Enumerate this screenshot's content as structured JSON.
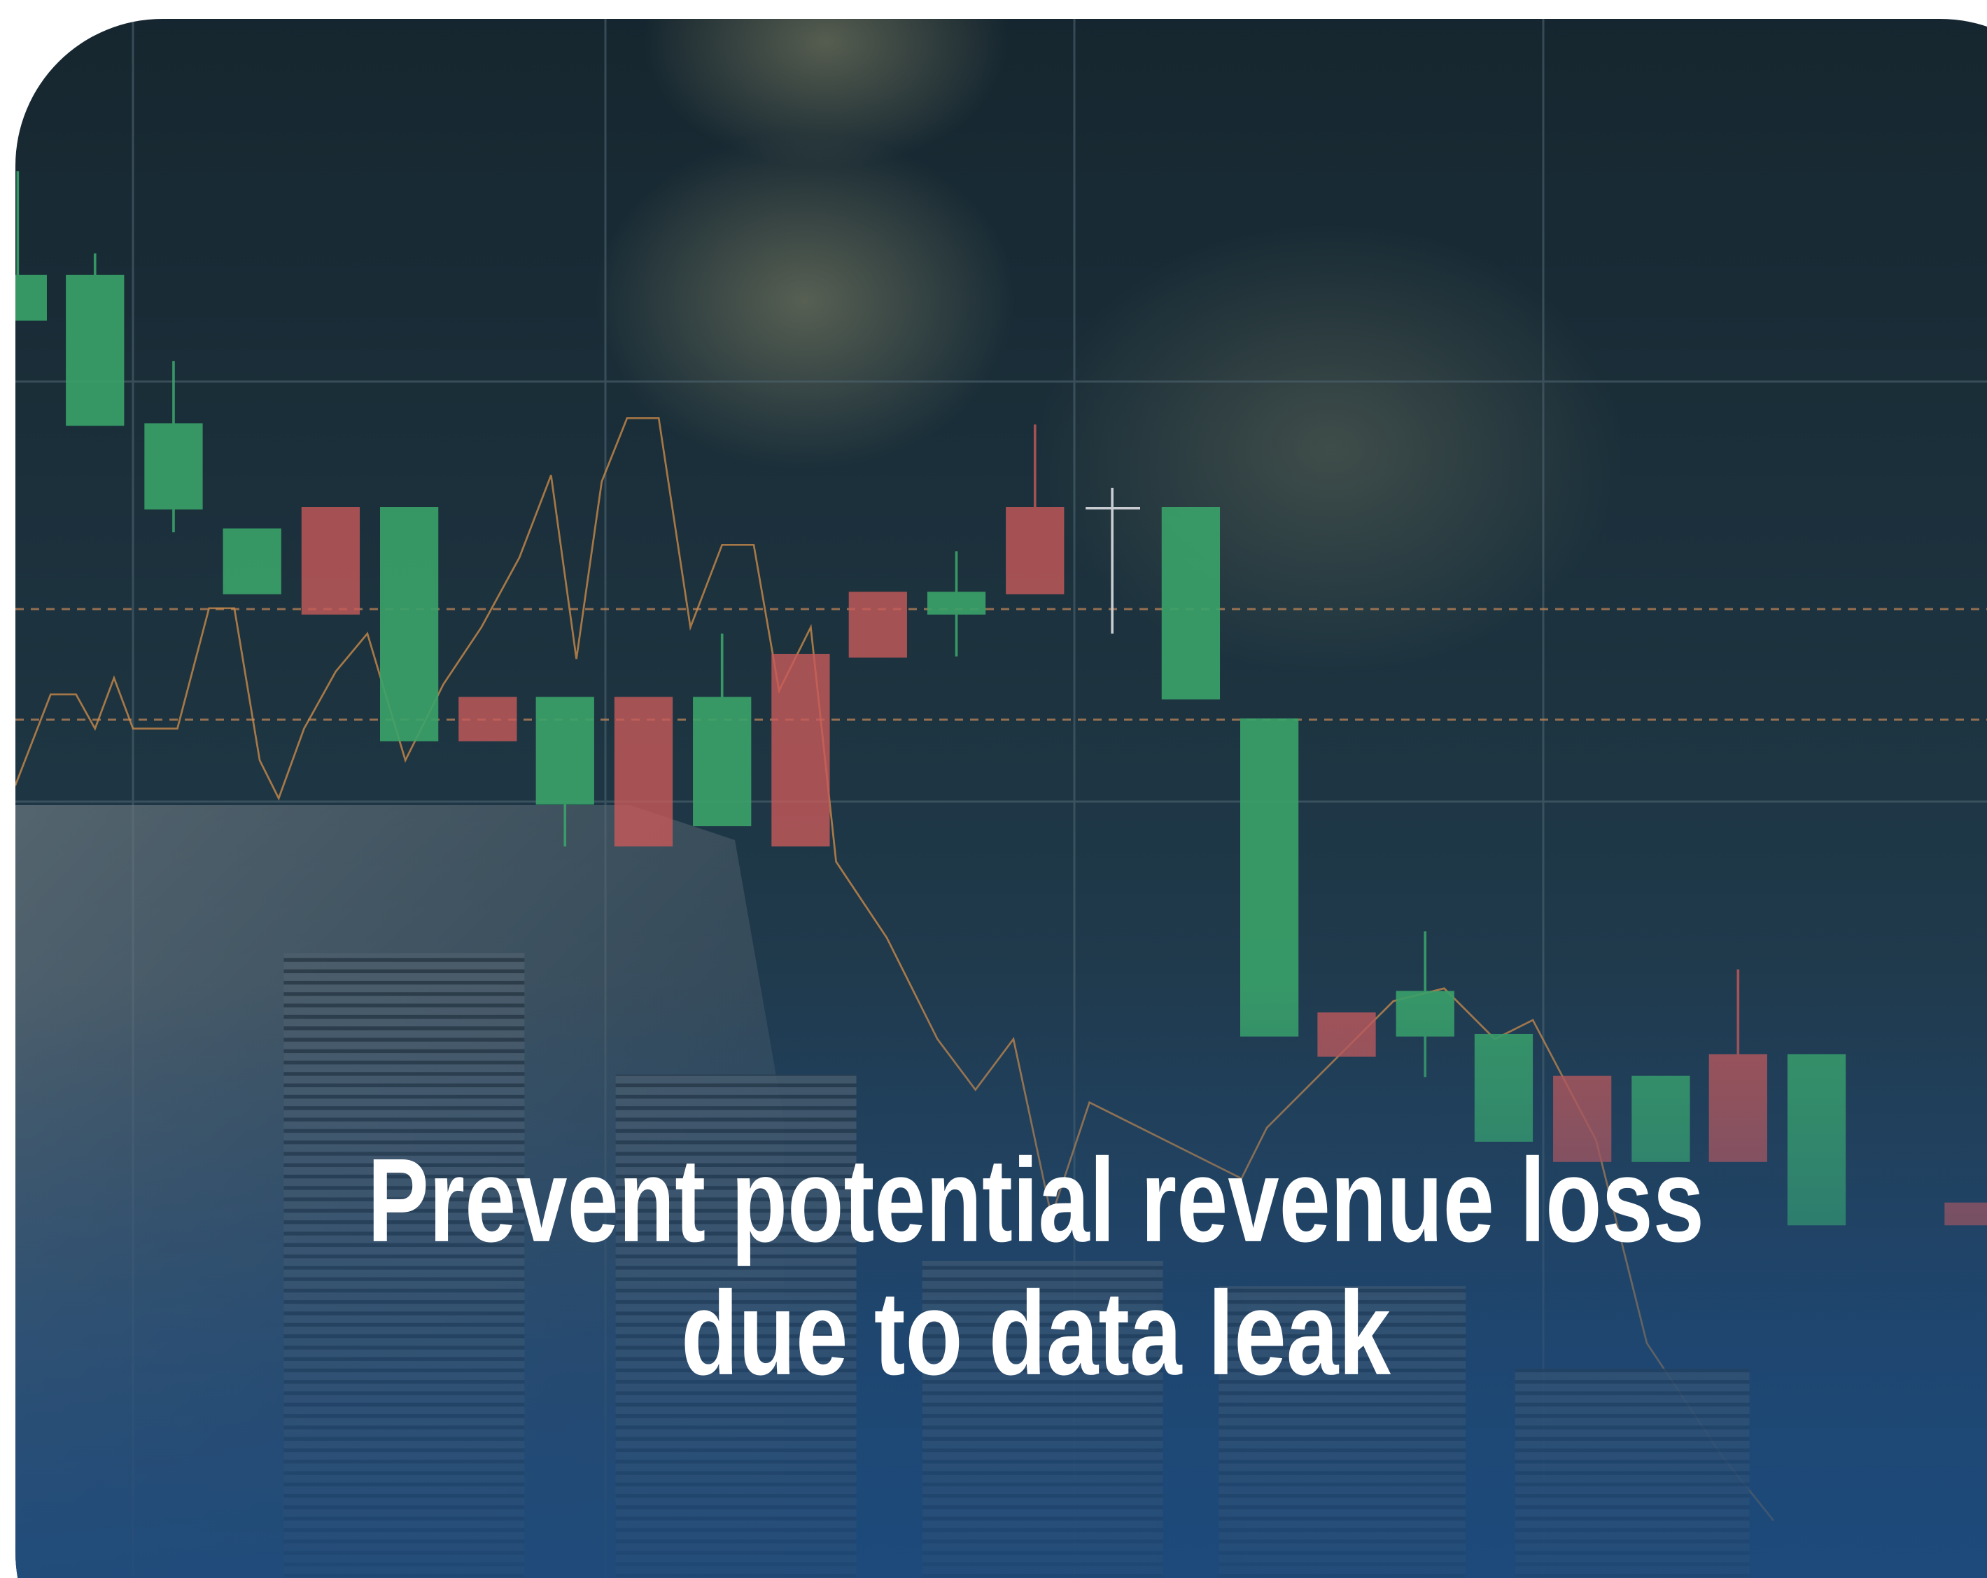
{
  "card": {
    "title_lines": [
      "Prevent potential revenue loss",
      "due to data leak"
    ]
  }
}
